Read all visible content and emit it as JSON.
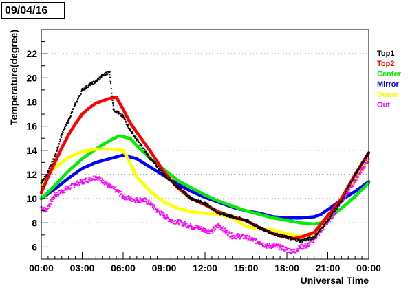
{
  "date_label": "09/04/16",
  "chart_data": {
    "type": "line",
    "title": "",
    "xlabel": "Universal Time",
    "ylabel": "Temperature(degree)",
    "xlim": [
      0,
      24
    ],
    "ylim": [
      5,
      24
    ],
    "x_ticks": [
      0,
      3,
      6,
      9,
      12,
      15,
      18,
      21,
      24
    ],
    "x_tick_labels": [
      "00:00",
      "03:00",
      "06:00",
      "09:00",
      "12:00",
      "15:00",
      "18:00",
      "21:00",
      "00:00"
    ],
    "y_ticks": [
      6,
      8,
      10,
      12,
      14,
      16,
      18,
      20,
      22
    ],
    "y_tick_labels": [
      "6",
      "8",
      "10",
      "12",
      "14",
      "16",
      "18",
      "20",
      "22"
    ],
    "grid": "horizontal dotted",
    "legend_position": "right",
    "series": [
      {
        "name": "Top1",
        "color": "#000000",
        "style": "scatter",
        "x": [
          0,
          0.5,
          1,
          1.5,
          2,
          2.5,
          3,
          3.5,
          4,
          4.5,
          5,
          5.3,
          5.5,
          6,
          6.5,
          7,
          8,
          9,
          10,
          11,
          12,
          13,
          14,
          15,
          16,
          17,
          18,
          19,
          20,
          21,
          22,
          23,
          24
        ],
        "y": [
          11.3,
          12.2,
          13.5,
          15.3,
          16.5,
          17.8,
          19.0,
          19.4,
          19.7,
          20.2,
          20.5,
          17.4,
          17.2,
          16.8,
          15.7,
          14.9,
          13.3,
          12.0,
          11.0,
          10.0,
          9.6,
          8.8,
          8.5,
          8.2,
          7.6,
          7.1,
          6.8,
          6.5,
          6.8,
          8.2,
          9.8,
          12.0,
          13.8
        ]
      },
      {
        "name": "Top2",
        "color": "#ff0000",
        "style": "line",
        "x": [
          0,
          0.5,
          1,
          1.5,
          2,
          2.5,
          3,
          3.5,
          4,
          4.5,
          5,
          5.5,
          6,
          6.5,
          7,
          8,
          9,
          10,
          11,
          12,
          13,
          14,
          15,
          16,
          17,
          18,
          18.5,
          19,
          20,
          21,
          22,
          23,
          24
        ],
        "y": [
          10.5,
          11.8,
          13.0,
          14.2,
          15.3,
          16.2,
          17.0,
          17.5,
          17.9,
          18.1,
          18.3,
          18.4,
          17.4,
          16.3,
          15.5,
          13.9,
          12.2,
          10.9,
          10.0,
          9.5,
          8.9,
          8.5,
          8.2,
          7.6,
          7.1,
          6.8,
          6.7,
          6.8,
          7.2,
          8.6,
          10.0,
          12.0,
          13.8
        ]
      },
      {
        "name": "Center",
        "color": "#00ee00",
        "style": "line",
        "x": [
          0,
          1,
          2,
          3,
          4,
          5,
          5.7,
          6.5,
          7,
          8,
          9,
          10,
          11,
          12,
          13,
          14,
          15,
          16,
          17,
          18,
          19,
          20,
          20.5,
          21,
          22,
          23,
          24
        ],
        "y": [
          10.0,
          11.1,
          12.3,
          13.3,
          14.1,
          14.8,
          15.2,
          15.0,
          14.4,
          13.3,
          12.4,
          11.5,
          10.9,
          10.3,
          9.8,
          9.4,
          9.0,
          8.7,
          8.4,
          8.2,
          8.0,
          7.9,
          8.0,
          8.3,
          9.2,
          10.2,
          11.3
        ]
      },
      {
        "name": "Mirror",
        "color": "#0000ff",
        "style": "line",
        "x": [
          0,
          1,
          2,
          3,
          4,
          5,
          6,
          7,
          8,
          9,
          10,
          11,
          12,
          13,
          14,
          15,
          16,
          17,
          18,
          19,
          20,
          20.5,
          21,
          22,
          23,
          24
        ],
        "y": [
          10.0,
          10.8,
          11.7,
          12.5,
          13.0,
          13.3,
          13.6,
          13.3,
          12.6,
          11.9,
          11.2,
          10.6,
          10.1,
          9.7,
          9.3,
          9.0,
          8.8,
          8.5,
          8.4,
          8.4,
          8.5,
          8.7,
          9.1,
          9.9,
          10.6,
          11.4
        ]
      },
      {
        "name": "Dome",
        "color": "#ffff00",
        "style": "line",
        "x": [
          0,
          0.5,
          1,
          2,
          3,
          4,
          5,
          6,
          6.5,
          7,
          8,
          9,
          10,
          11,
          12,
          13,
          14,
          15,
          16,
          17,
          18,
          19,
          20,
          21,
          22,
          23,
          24
        ],
        "y": [
          11.0,
          12.0,
          12.6,
          13.4,
          13.9,
          14.1,
          14.1,
          14.0,
          13.0,
          11.8,
          10.6,
          9.7,
          9.2,
          8.9,
          8.8,
          8.7,
          8.4,
          7.7,
          7.5,
          7.4,
          7.1,
          6.9,
          7.0,
          8.5,
          10.0,
          11.6,
          13.2
        ]
      },
      {
        "name": "Out",
        "color": "#ff00ff",
        "style": "scatter",
        "x": [
          0,
          0.3,
          0.6,
          1,
          1.5,
          2,
          2.5,
          3,
          3.5,
          4,
          4.5,
          5,
          5.5,
          6,
          6.5,
          7,
          7.5,
          8,
          8.5,
          9,
          9.5,
          10,
          10.5,
          11,
          11.5,
          12,
          12.5,
          13,
          13.5,
          14,
          14.5,
          15,
          15.5,
          16,
          16.5,
          17,
          17.5,
          18,
          18.5,
          19,
          19.5,
          20,
          20.5,
          21,
          21.5,
          22,
          22.5,
          23,
          23.5,
          24
        ],
        "y": [
          9.3,
          9.0,
          9.5,
          10.3,
          10.6,
          10.9,
          11.2,
          11.4,
          11.6,
          11.8,
          11.5,
          11.0,
          10.7,
          10.2,
          10.0,
          9.9,
          9.9,
          9.6,
          9.0,
          8.6,
          8.2,
          8.1,
          7.9,
          7.7,
          7.6,
          7.4,
          7.3,
          7.8,
          7.3,
          6.9,
          6.9,
          6.8,
          6.6,
          6.4,
          6.1,
          6.1,
          6.0,
          5.8,
          5.6,
          6.0,
          6.1,
          6.7,
          7.3,
          8.1,
          8.8,
          9.8,
          10.5,
          11.5,
          12.4,
          13.3
        ]
      }
    ]
  }
}
